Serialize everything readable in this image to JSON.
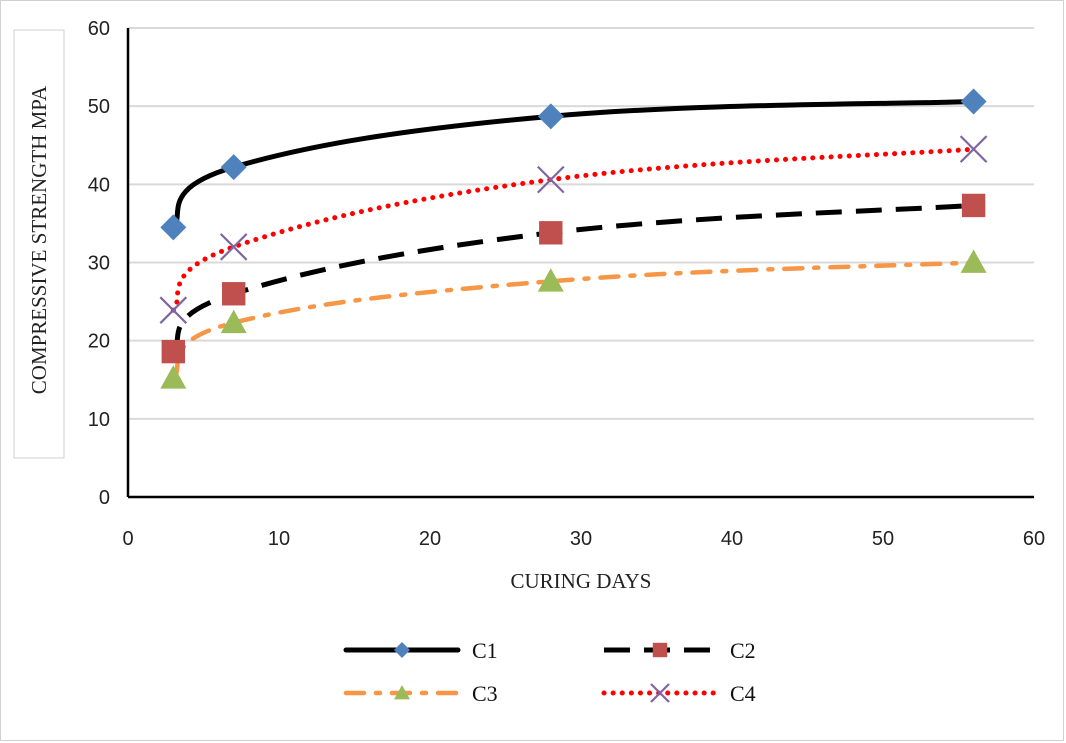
{
  "chart_data": {
    "type": "line",
    "title": "",
    "xlabel": "CURING DAYS",
    "ylabel": "COMPRESSIVE STRENGTH MPA",
    "xlim": [
      0,
      60
    ],
    "ylim": [
      0,
      60
    ],
    "xticks": [
      0,
      10,
      20,
      30,
      40,
      50,
      60
    ],
    "yticks": [
      0,
      10,
      20,
      30,
      40,
      50,
      60
    ],
    "grid": "horizontal",
    "legend_position": "bottom",
    "x": [
      3,
      7,
      28,
      56
    ],
    "series": [
      {
        "name": "C1",
        "values": [
          34.5,
          42.2,
          48.7,
          50.6
        ],
        "line_color": "#000000",
        "line_style": "solid",
        "marker": "diamond",
        "marker_color": "#4f81bd"
      },
      {
        "name": "C2",
        "values": [
          18.6,
          26.0,
          33.8,
          37.3
        ],
        "line_color": "#000000",
        "line_style": "dashed",
        "marker": "square",
        "marker_color": "#c0504d"
      },
      {
        "name": "C3",
        "values": [
          15.2,
          22.3,
          27.6,
          30.0
        ],
        "line_color": "#f79646",
        "line_style": "dash-dot",
        "marker": "triangle",
        "marker_color": "#9bbb59"
      },
      {
        "name": "C4",
        "values": [
          23.9,
          32.0,
          40.6,
          44.5
        ],
        "line_color": "#ff0000",
        "line_style": "dotted",
        "marker": "x",
        "marker_color": "#8064a2"
      }
    ]
  }
}
